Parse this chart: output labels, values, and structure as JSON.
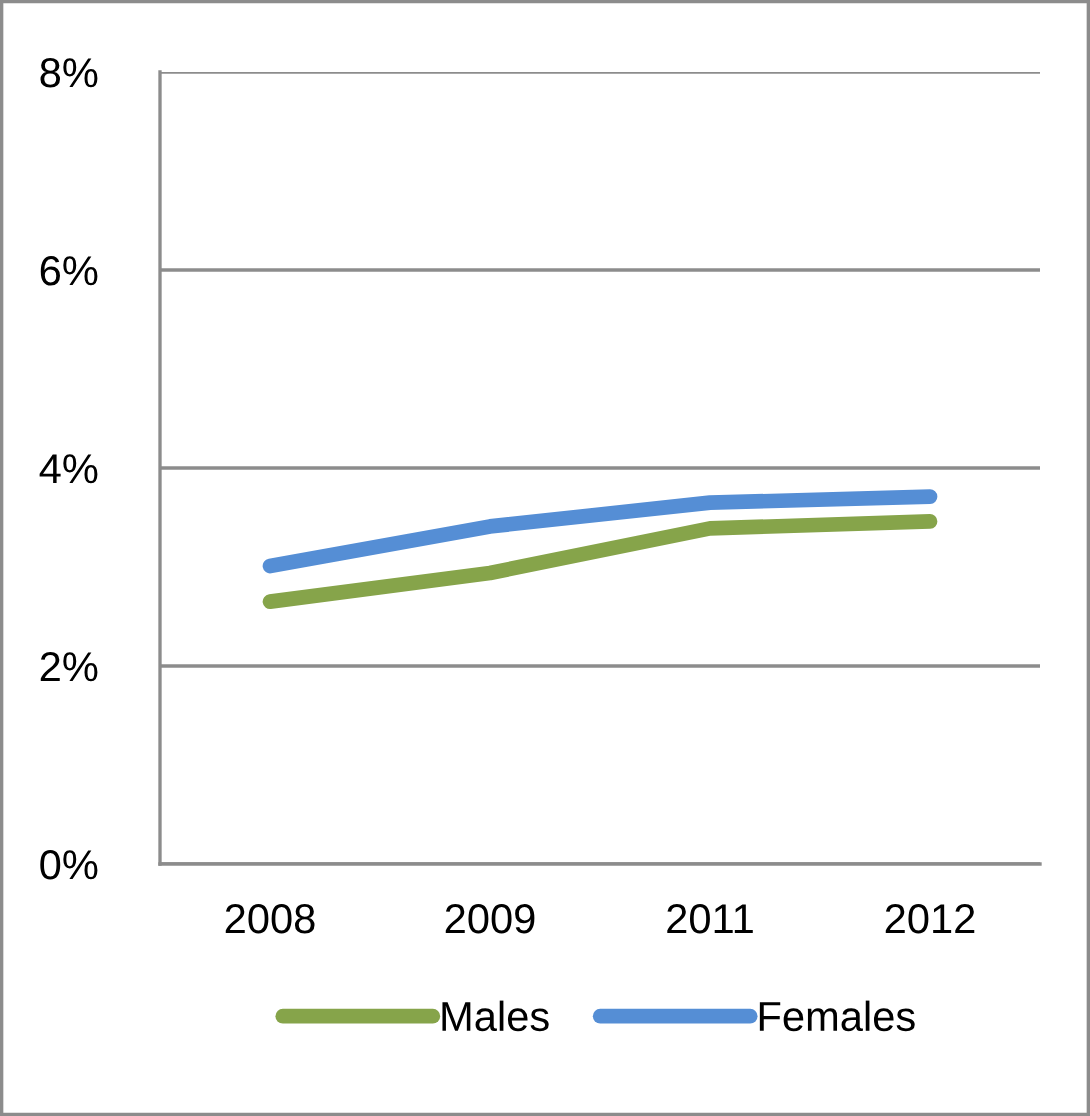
{
  "chart_data": {
    "type": "line",
    "categories": [
      "2008",
      "2009",
      "2011",
      "2012"
    ],
    "series": [
      {
        "name": "Males",
        "color": "#86a44a",
        "values": [
          2.65,
          2.94,
          3.39,
          3.46
        ]
      },
      {
        "name": "Females",
        "color": "#558ed5",
        "values": [
          3.01,
          3.41,
          3.65,
          3.71
        ]
      }
    ],
    "ylim": [
      0,
      8
    ],
    "yticks": [
      {
        "value": 0,
        "label": "0%"
      },
      {
        "value": 2,
        "label": "2%"
      },
      {
        "value": 4,
        "label": "4%"
      },
      {
        "value": 6,
        "label": "6%"
      },
      {
        "value": 8,
        "label": "8%"
      }
    ],
    "grid": "y",
    "legend": "bottom",
    "marker": "none",
    "line_style": "solid"
  }
}
